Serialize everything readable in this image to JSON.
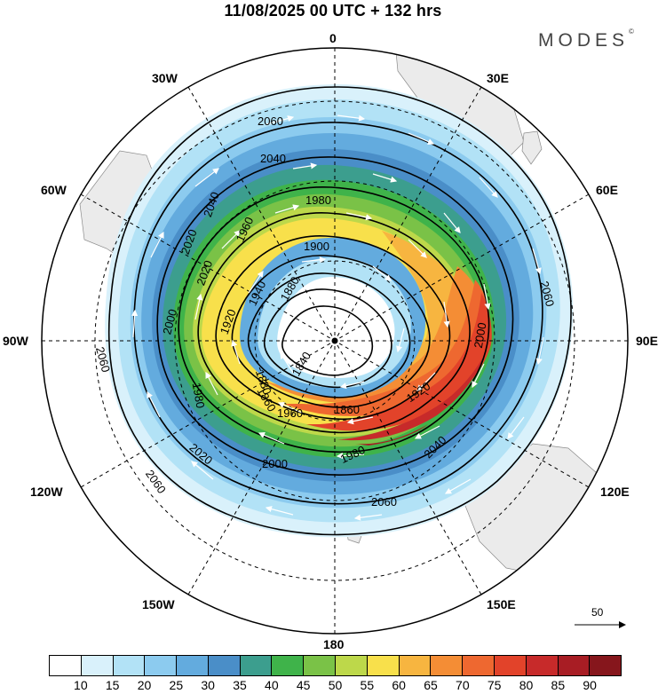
{
  "title": "11/08/2025  00 UTC  + 132 hrs",
  "brand": "MODES",
  "brand_mark": "©",
  "longitude_labels": {
    "n": "0",
    "s": "180",
    "e30": "30E",
    "e60": "60E",
    "e90": "90E",
    "e120": "120E",
    "e150": "150E",
    "w30": "30W",
    "w60": "60W",
    "w90": "90W",
    "w120": "120W",
    "w150": "150W"
  },
  "contour_labels": [
    "2060",
    "2040",
    "2040",
    "2020",
    "2020",
    "2000",
    "2000",
    "1980",
    "1980",
    "1960",
    "1960",
    "1940",
    "1920",
    "1920",
    "1900",
    "1880",
    "1880",
    "1860",
    "1860",
    "1840",
    "2060",
    "2060",
    "2060",
    "2060",
    "1980",
    "2000",
    "2020",
    "2040"
  ],
  "reference_vector": {
    "label": "50"
  },
  "colorbar": {
    "colors": [
      "#ffffff",
      "#d9f1fb",
      "#b2e2f6",
      "#8ccbef",
      "#63abde",
      "#4a8ec8",
      "#3c9e8e",
      "#3fb34a",
      "#7ac247",
      "#bdd84a",
      "#f8e04b",
      "#f7b540",
      "#f48d35",
      "#ee6830",
      "#e2432a",
      "#c72a2a",
      "#a81d24",
      "#86161c"
    ],
    "tick_labels": [
      "10",
      "15",
      "20",
      "25",
      "30",
      "35",
      "40",
      "45",
      "50",
      "55",
      "60",
      "65",
      "70",
      "75",
      "80",
      "85",
      "90"
    ]
  }
}
